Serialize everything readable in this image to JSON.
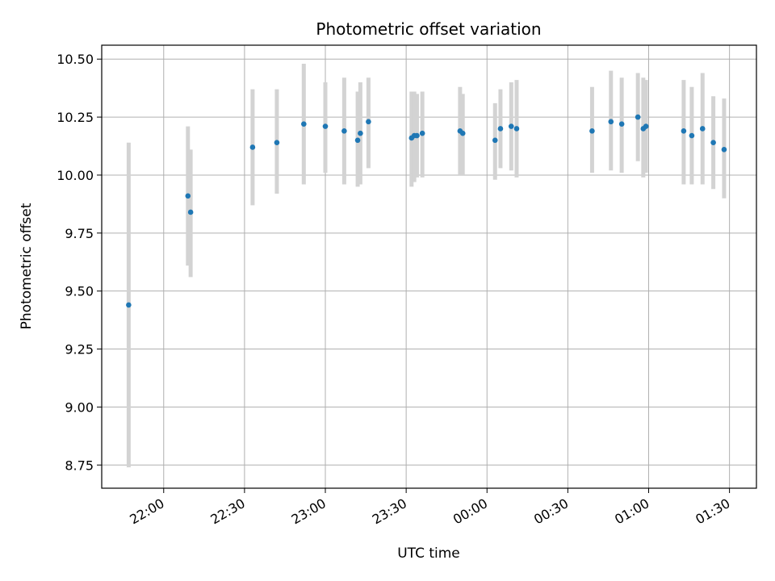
{
  "chart_data": {
    "type": "scatter",
    "title": "Photometric offset variation",
    "xlabel": "UTC time",
    "ylabel": "Photometric offset",
    "grid": true,
    "ylim": [
      8.65,
      10.56
    ],
    "xlim": [
      "21:37",
      "01:40"
    ],
    "x_ticks": [
      "22:00",
      "22:30",
      "23:00",
      "23:30",
      "00:00",
      "00:30",
      "01:00",
      "01:30"
    ],
    "y_ticks": [
      "8.75",
      "9.00",
      "9.25",
      "9.50",
      "9.75",
      "10.00",
      "10.25",
      "10.50"
    ],
    "y_tick_values": [
      8.75,
      9.0,
      9.25,
      9.5,
      9.75,
      10.0,
      10.25,
      10.5
    ],
    "colors": {
      "points": "#1f77b4",
      "error_bars": "#d3d3d3",
      "grid": "#b0b0b0"
    },
    "points": [
      {
        "t": "21:47",
        "y": 9.44,
        "low": 8.74,
        "high": 10.14
      },
      {
        "t": "22:09",
        "y": 9.91,
        "low": 9.61,
        "high": 10.21
      },
      {
        "t": "22:10",
        "y": 9.84,
        "low": 9.56,
        "high": 10.11
      },
      {
        "t": "22:33",
        "y": 10.12,
        "low": 9.87,
        "high": 10.37
      },
      {
        "t": "22:42",
        "y": 10.14,
        "low": 9.92,
        "high": 10.37
      },
      {
        "t": "22:52",
        "y": 10.22,
        "low": 9.96,
        "high": 10.48
      },
      {
        "t": "23:00",
        "y": 10.21,
        "low": 10.01,
        "high": 10.4
      },
      {
        "t": "23:07",
        "y": 10.19,
        "low": 9.96,
        "high": 10.42
      },
      {
        "t": "23:12",
        "y": 10.15,
        "low": 9.95,
        "high": 10.36
      },
      {
        "t": "23:13",
        "y": 10.18,
        "low": 9.96,
        "high": 10.4
      },
      {
        "t": "23:16",
        "y": 10.23,
        "low": 10.03,
        "high": 10.42
      },
      {
        "t": "23:32",
        "y": 10.16,
        "low": 9.95,
        "high": 10.36
      },
      {
        "t": "23:33",
        "y": 10.17,
        "low": 9.97,
        "high": 10.36
      },
      {
        "t": "23:34",
        "y": 10.17,
        "low": 9.99,
        "high": 10.35
      },
      {
        "t": "23:36",
        "y": 10.18,
        "low": 9.99,
        "high": 10.36
      },
      {
        "t": "23:50",
        "y": 10.19,
        "low": 10.0,
        "high": 10.38
      },
      {
        "t": "23:51",
        "y": 10.18,
        "low": 10.0,
        "high": 10.35
      },
      {
        "t": "00:03",
        "y": 10.15,
        "low": 9.98,
        "high": 10.31
      },
      {
        "t": "00:05",
        "y": 10.2,
        "low": 10.03,
        "high": 10.37
      },
      {
        "t": "00:09",
        "y": 10.21,
        "low": 10.02,
        "high": 10.4
      },
      {
        "t": "00:11",
        "y": 10.2,
        "low": 9.99,
        "high": 10.41
      },
      {
        "t": "00:39",
        "y": 10.19,
        "low": 10.01,
        "high": 10.38
      },
      {
        "t": "00:46",
        "y": 10.23,
        "low": 10.02,
        "high": 10.45
      },
      {
        "t": "00:50",
        "y": 10.22,
        "low": 10.01,
        "high": 10.42
      },
      {
        "t": "00:56",
        "y": 10.25,
        "low": 10.06,
        "high": 10.44
      },
      {
        "t": "00:58",
        "y": 10.2,
        "low": 9.99,
        "high": 10.42
      },
      {
        "t": "00:59",
        "y": 10.21,
        "low": 10.01,
        "high": 10.41
      },
      {
        "t": "01:13",
        "y": 10.19,
        "low": 9.96,
        "high": 10.41
      },
      {
        "t": "01:16",
        "y": 10.17,
        "low": 9.96,
        "high": 10.38
      },
      {
        "t": "01:20",
        "y": 10.2,
        "low": 9.96,
        "high": 10.44
      },
      {
        "t": "01:24",
        "y": 10.14,
        "low": 9.94,
        "high": 10.34
      },
      {
        "t": "01:28",
        "y": 10.11,
        "low": 9.9,
        "high": 10.33
      }
    ]
  }
}
